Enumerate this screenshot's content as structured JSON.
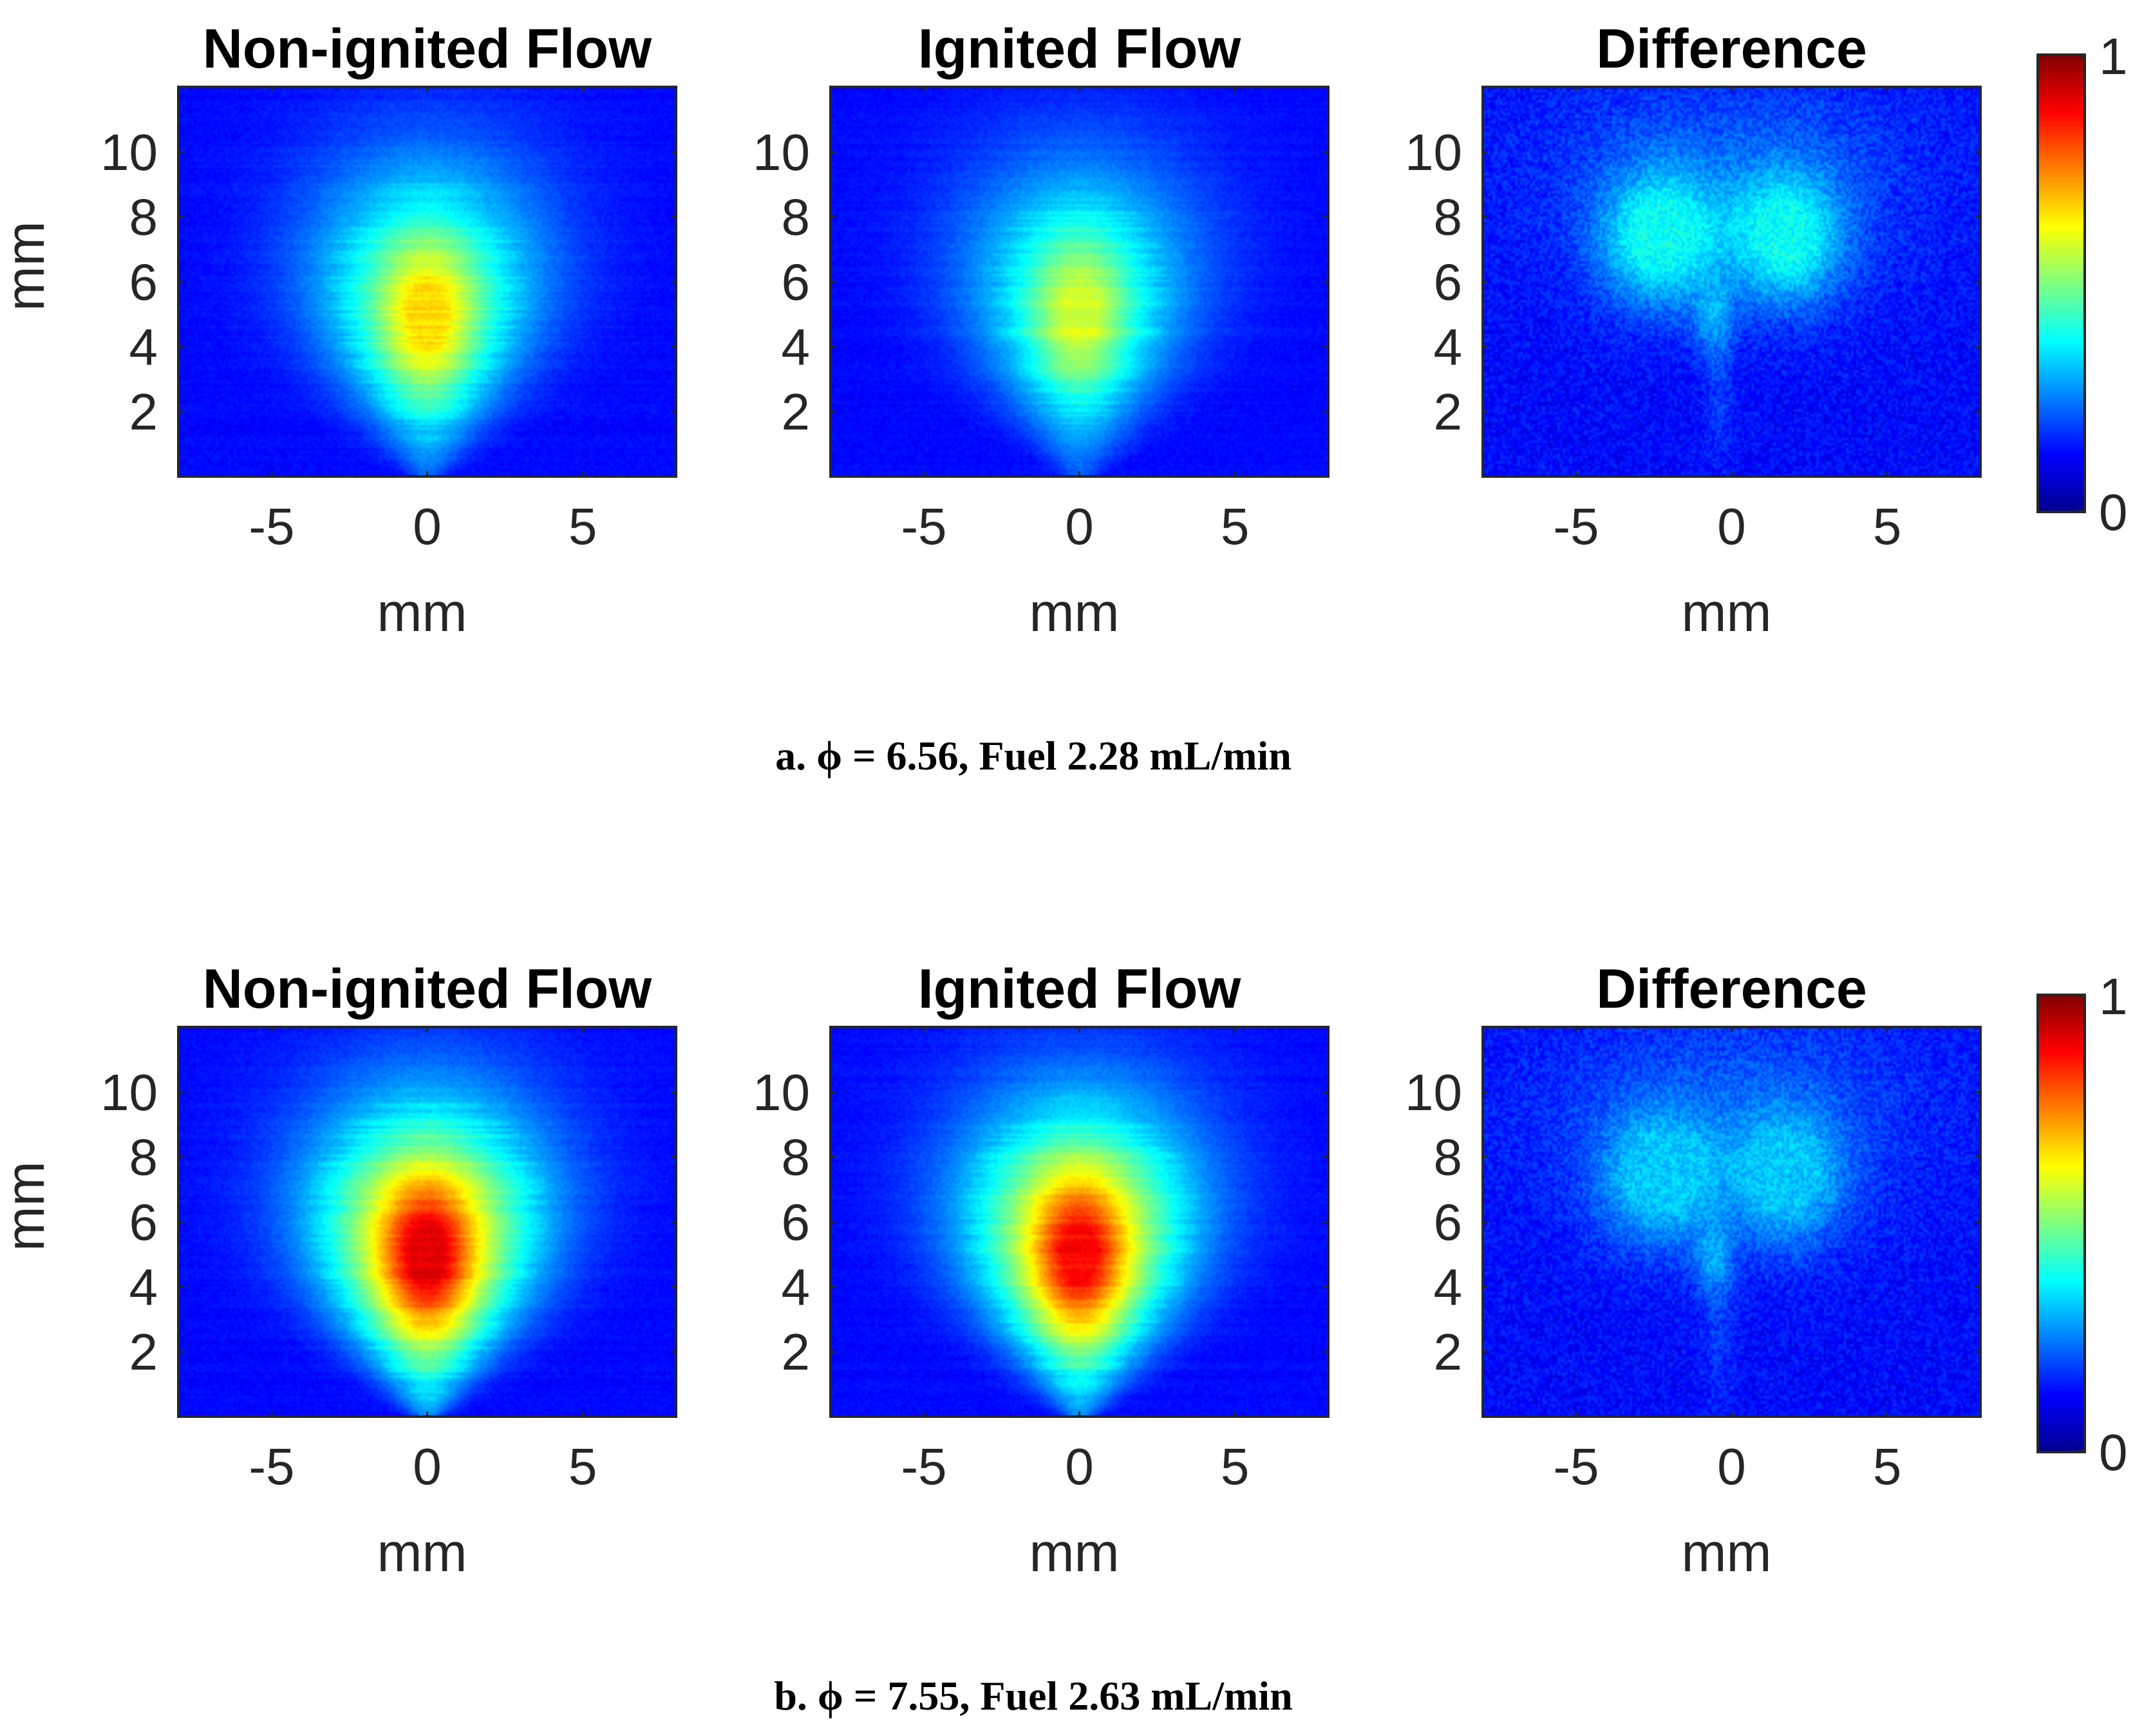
{
  "chart_data": [
    {
      "type": "heatmap",
      "caption": "a. ϕ = 6.56, Fuel 2.28 mL/min",
      "colorbar": {
        "min_label": "0",
        "max_label": "1",
        "range": [
          0,
          1
        ],
        "colormap": "jet"
      },
      "panels": [
        {
          "title": "Non-ignited Flow",
          "kind": "plume",
          "peak": 0.66,
          "xlabel": "mm",
          "ylabel": "mm"
        },
        {
          "title": "Ignited Flow",
          "kind": "plume",
          "peak": 0.58,
          "xlabel": "mm",
          "ylabel": ""
        },
        {
          "title": "Difference",
          "kind": "difference",
          "peak": 0.38,
          "xlabel": "mm",
          "ylabel": ""
        }
      ],
      "xlim": [
        -8,
        8
      ],
      "ylim": [
        0,
        12
      ],
      "xticks": [
        "-5",
        "0",
        "5"
      ],
      "xtick_values": [
        -5,
        0,
        5
      ],
      "yticks": [
        "2",
        "4",
        "6",
        "8",
        "10"
      ],
      "ytick_values": [
        2,
        4,
        6,
        8,
        10
      ]
    },
    {
      "type": "heatmap",
      "caption": "b. ϕ = 7.55, Fuel 2.63 mL/min",
      "colorbar": {
        "min_label": "0",
        "max_label": "1",
        "range": [
          0,
          1
        ],
        "colormap": "jet"
      },
      "panels": [
        {
          "title": "Non-ignited Flow",
          "kind": "plume",
          "peak": 0.9,
          "xlabel": "mm",
          "ylabel": "mm"
        },
        {
          "title": "Ignited Flow",
          "kind": "plume",
          "peak": 0.87,
          "xlabel": "mm",
          "ylabel": ""
        },
        {
          "title": "Difference",
          "kind": "difference",
          "peak": 0.32,
          "xlabel": "mm",
          "ylabel": ""
        }
      ],
      "xlim": [
        -8,
        8
      ],
      "ylim": [
        0,
        12
      ],
      "xticks": [
        "-5",
        "0",
        "5"
      ],
      "xtick_values": [
        -5,
        0,
        5
      ],
      "yticks": [
        "2",
        "4",
        "6",
        "8",
        "10"
      ],
      "ytick_values": [
        2,
        4,
        6,
        8,
        10
      ]
    }
  ]
}
